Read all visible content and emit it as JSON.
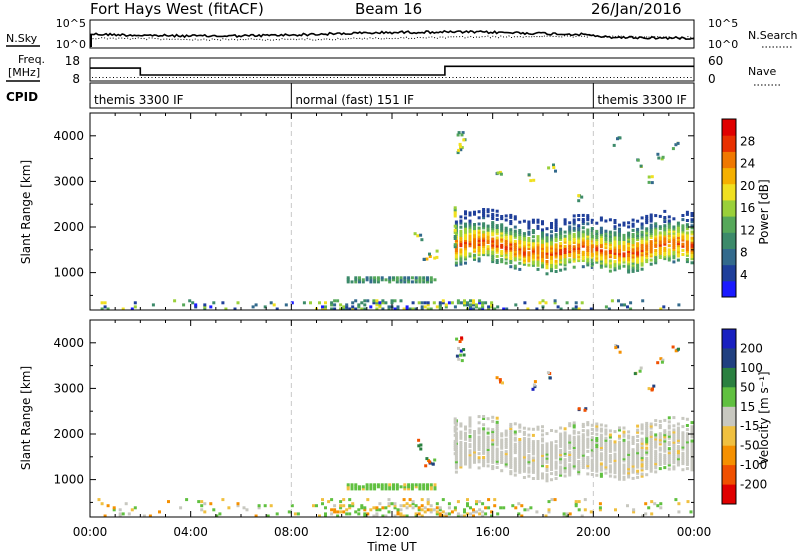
{
  "header": {
    "title": "Fort Hays West (fitACF)",
    "beam": "Beam 16",
    "date": "26/Jan/2016"
  },
  "noise_panel": {
    "left_label": "N.Sky",
    "right_label": "N.Search",
    "left_ticks": [
      "10^5",
      "10^0"
    ],
    "right_ticks": [
      "10^5",
      "10^0"
    ]
  },
  "freq_panel": {
    "left_label_line1": "Freq.",
    "left_label_line2": "[MHz]",
    "right_label": "Nave",
    "left_ticks": [
      "18",
      "8"
    ],
    "right_ticks": [
      "60",
      "0"
    ],
    "freq_steps": [
      {
        "t_start": 0.0,
        "t_end": 2.0,
        "mhz": 13.6
      },
      {
        "t_start": 2.0,
        "t_end": 14.1,
        "mhz": 10.6
      },
      {
        "t_start": 14.1,
        "t_end": 24.0,
        "mhz": 14.4
      }
    ],
    "nave_level": 9
  },
  "cpid_panel": {
    "label": "CPID",
    "segments": [
      {
        "t_start": 0.0,
        "t_end": 8.0,
        "text": "themis 3300 IF"
      },
      {
        "t_start": 8.0,
        "t_end": 20.0,
        "text": "normal (fast) 151 IF"
      },
      {
        "t_start": 20.0,
        "t_end": 24.0,
        "text": "themis 3300 IF"
      }
    ]
  },
  "colors": {
    "power_scale": [
      "#1a1aff",
      "#1f3f9a",
      "#336a8c",
      "#3c8a6a",
      "#56a85a",
      "#9ad03a",
      "#f0e020",
      "#f5b000",
      "#f07800",
      "#e83000",
      "#e00000"
    ],
    "velocity_scale": [
      "#e00000",
      "#f05000",
      "#f59000",
      "#f0c040",
      "#c8c8c0",
      "#60c040",
      "#2a8040",
      "#204080",
      "#1820c0"
    ],
    "dashed_time_lines": "#c8c8c8"
  },
  "chart_data": [
    {
      "type": "heatmap",
      "title": "Power",
      "xlabel": "",
      "ylabel": "Slant Range [km]",
      "x_ticks": [
        "00:00",
        "04:00",
        "08:00",
        "12:00",
        "16:00",
        "20:00",
        "00:00"
      ],
      "xlim_hours": [
        0,
        24
      ],
      "ylim_km": [
        180,
        4500
      ],
      "y_ticks": [
        1000,
        2000,
        3000,
        4000
      ],
      "colorbar_label": "Power [dB]",
      "colorbar_ticks": [
        "4",
        "8",
        "12",
        "16",
        "20",
        "24",
        "28"
      ],
      "colorbar_range": [
        0,
        32
      ],
      "regions": [
        {
          "t": [
            14.5,
            23.9
          ],
          "band_km": [
            1250,
            2300
          ],
          "center_km": 1600,
          "peak_db": 28
        },
        {
          "t": [
            10.2,
            13.8
          ],
          "band_km": [
            820,
            960
          ],
          "peak_db": 10
        },
        {
          "t": [
            0.2,
            24.0
          ],
          "band_km": [
            180,
            420
          ],
          "peak_db": 12
        }
      ]
    },
    {
      "type": "heatmap",
      "title": "Velocity",
      "xlabel": "Time UT",
      "ylabel": "Slant Range [km]",
      "x_ticks": [
        "00:00",
        "04:00",
        "08:00",
        "12:00",
        "16:00",
        "20:00",
        "00:00"
      ],
      "xlim_hours": [
        0,
        24
      ],
      "ylim_km": [
        180,
        4500
      ],
      "y_ticks": [
        1000,
        2000,
        3000,
        4000
      ],
      "colorbar_label": "Velocity [m s⁻¹]",
      "colorbar_ticks": [
        "200",
        "100",
        "50",
        "15",
        "-15",
        "-50",
        "-100",
        "-200"
      ],
      "regions": [
        {
          "t": [
            14.5,
            23.9
          ],
          "band_km": [
            1250,
            2300
          ],
          "velocity": 0
        },
        {
          "t": [
            10.2,
            13.8
          ],
          "band_km": [
            820,
            960
          ],
          "velocity": 40
        },
        {
          "t": [
            8.5,
            15.0
          ],
          "band_km": [
            180,
            600
          ],
          "velocity": -40
        }
      ]
    }
  ]
}
